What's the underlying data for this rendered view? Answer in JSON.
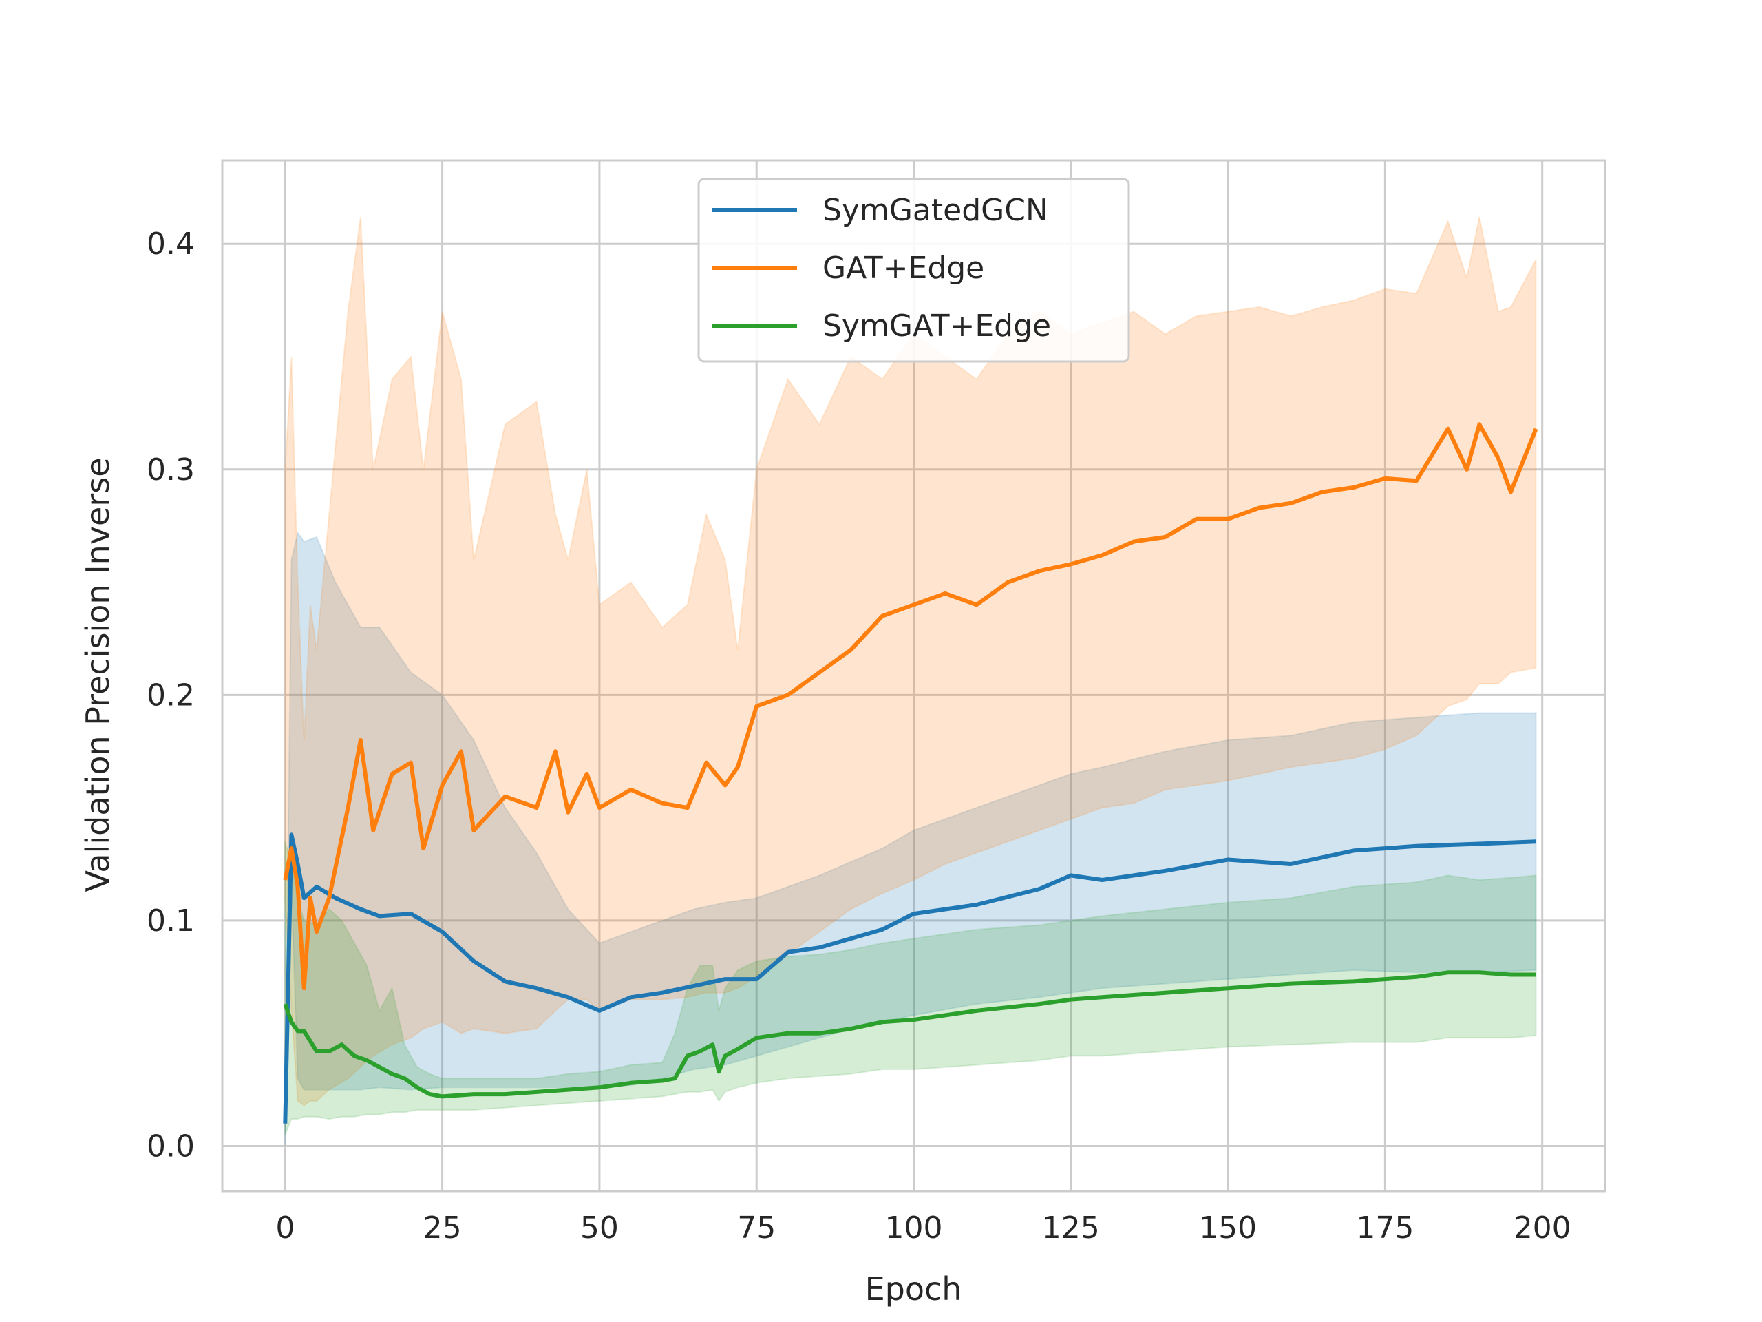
{
  "chart_data": {
    "type": "line",
    "title": "",
    "xlabel": "Epoch",
    "ylabel": "Validation Precision Inverse",
    "xlim": [
      -10,
      210
    ],
    "ylim": [
      -0.02,
      0.437
    ],
    "xticks": [
      0,
      25,
      50,
      75,
      100,
      125,
      150,
      175,
      200
    ],
    "xtick_labels": [
      "0",
      "25",
      "50",
      "75",
      "100",
      "125",
      "150",
      "175",
      "200"
    ],
    "yticks": [
      0.0,
      0.1,
      0.2,
      0.3,
      0.4
    ],
    "ytick_labels": [
      "0.0",
      "0.1",
      "0.2",
      "0.3",
      "0.4"
    ],
    "grid": true,
    "legend_position": "top-center",
    "series": [
      {
        "name": "SymGatedGCN",
        "color": "#1f77b4",
        "x": [
          0,
          1,
          2,
          3,
          5,
          8,
          12,
          15,
          20,
          25,
          30,
          35,
          40,
          45,
          50,
          55,
          60,
          65,
          70,
          75,
          80,
          85,
          90,
          95,
          100,
          110,
          120,
          125,
          130,
          140,
          150,
          160,
          170,
          180,
          190,
          199
        ],
        "mean": [
          0.01,
          0.138,
          0.125,
          0.11,
          0.115,
          0.11,
          0.105,
          0.102,
          0.103,
          0.095,
          0.082,
          0.073,
          0.07,
          0.066,
          0.06,
          0.066,
          0.068,
          0.071,
          0.074,
          0.074,
          0.086,
          0.088,
          0.092,
          0.096,
          0.103,
          0.107,
          0.114,
          0.12,
          0.118,
          0.122,
          0.127,
          0.125,
          0.131,
          0.133,
          0.134,
          0.135
        ],
        "lower": [
          0.0,
          0.115,
          0.03,
          0.025,
          0.025,
          0.025,
          0.025,
          0.026,
          0.025,
          0.026,
          0.026,
          0.026,
          0.026,
          0.026,
          0.026,
          0.027,
          0.03,
          0.034,
          0.036,
          0.04,
          0.044,
          0.048,
          0.052,
          0.055,
          0.058,
          0.063,
          0.066,
          0.068,
          0.07,
          0.072,
          0.074,
          0.076,
          0.078,
          0.077,
          0.077,
          0.078
        ],
        "upper": [
          0.018,
          0.26,
          0.272,
          0.268,
          0.27,
          0.25,
          0.23,
          0.23,
          0.21,
          0.2,
          0.18,
          0.15,
          0.13,
          0.105,
          0.09,
          0.095,
          0.1,
          0.105,
          0.108,
          0.11,
          0.115,
          0.12,
          0.126,
          0.132,
          0.14,
          0.15,
          0.16,
          0.165,
          0.168,
          0.175,
          0.18,
          0.182,
          0.188,
          0.19,
          0.192,
          0.192
        ]
      },
      {
        "name": "GAT+Edge",
        "color": "#ff7f0e",
        "x": [
          0,
          1,
          2,
          3,
          4,
          5,
          7,
          10,
          12,
          14,
          17,
          20,
          22,
          25,
          28,
          30,
          35,
          40,
          43,
          45,
          48,
          50,
          55,
          60,
          64,
          67,
          70,
          72,
          75,
          80,
          85,
          90,
          95,
          100,
          105,
          110,
          115,
          120,
          125,
          130,
          135,
          140,
          145,
          150,
          155,
          160,
          165,
          170,
          175,
          180,
          185,
          188,
          190,
          193,
          195,
          199
        ],
        "mean": [
          0.118,
          0.132,
          0.115,
          0.07,
          0.11,
          0.095,
          0.11,
          0.15,
          0.18,
          0.14,
          0.165,
          0.17,
          0.132,
          0.16,
          0.175,
          0.14,
          0.155,
          0.15,
          0.175,
          0.148,
          0.165,
          0.15,
          0.158,
          0.152,
          0.15,
          0.17,
          0.16,
          0.168,
          0.195,
          0.2,
          0.21,
          0.22,
          0.235,
          0.24,
          0.245,
          0.24,
          0.25,
          0.255,
          0.258,
          0.262,
          0.268,
          0.27,
          0.278,
          0.278,
          0.283,
          0.285,
          0.29,
          0.292,
          0.296,
          0.295,
          0.318,
          0.3,
          0.32,
          0.305,
          0.29,
          0.318
        ],
        "lower": [
          0.11,
          0.06,
          0.02,
          0.018,
          0.02,
          0.02,
          0.025,
          0.03,
          0.035,
          0.04,
          0.045,
          0.048,
          0.052,
          0.055,
          0.05,
          0.052,
          0.05,
          0.052,
          0.06,
          0.065,
          0.065,
          0.06,
          0.065,
          0.065,
          0.066,
          0.068,
          0.068,
          0.07,
          0.075,
          0.085,
          0.095,
          0.105,
          0.112,
          0.118,
          0.125,
          0.13,
          0.135,
          0.14,
          0.145,
          0.15,
          0.152,
          0.158,
          0.16,
          0.162,
          0.165,
          0.168,
          0.17,
          0.172,
          0.176,
          0.182,
          0.195,
          0.198,
          0.205,
          0.205,
          0.21,
          0.212
        ],
        "upper": [
          0.3,
          0.35,
          0.25,
          0.18,
          0.24,
          0.22,
          0.28,
          0.37,
          0.412,
          0.3,
          0.34,
          0.35,
          0.3,
          0.37,
          0.34,
          0.26,
          0.32,
          0.33,
          0.28,
          0.26,
          0.3,
          0.24,
          0.25,
          0.23,
          0.24,
          0.28,
          0.26,
          0.22,
          0.3,
          0.34,
          0.32,
          0.35,
          0.34,
          0.36,
          0.35,
          0.34,
          0.36,
          0.37,
          0.36,
          0.365,
          0.37,
          0.36,
          0.368,
          0.37,
          0.372,
          0.368,
          0.372,
          0.375,
          0.38,
          0.378,
          0.41,
          0.385,
          0.412,
          0.37,
          0.372,
          0.393
        ]
      },
      {
        "name": "SymGAT+Edge",
        "color": "#2ca02c",
        "x": [
          0,
          1,
          2,
          3,
          5,
          7,
          9,
          11,
          13,
          15,
          17,
          19,
          21,
          23,
          25,
          30,
          35,
          40,
          45,
          50,
          55,
          60,
          62,
          64,
          66,
          68,
          69,
          70,
          72,
          75,
          80,
          85,
          90,
          95,
          100,
          110,
          120,
          125,
          130,
          140,
          150,
          160,
          170,
          180,
          185,
          190,
          195,
          199
        ],
        "mean": [
          0.063,
          0.055,
          0.051,
          0.051,
          0.042,
          0.042,
          0.045,
          0.04,
          0.038,
          0.035,
          0.032,
          0.03,
          0.026,
          0.023,
          0.022,
          0.023,
          0.023,
          0.024,
          0.025,
          0.026,
          0.028,
          0.029,
          0.03,
          0.04,
          0.042,
          0.045,
          0.033,
          0.04,
          0.043,
          0.048,
          0.05,
          0.05,
          0.052,
          0.055,
          0.056,
          0.06,
          0.063,
          0.065,
          0.066,
          0.068,
          0.07,
          0.072,
          0.073,
          0.075,
          0.077,
          0.077,
          0.076,
          0.076
        ],
        "lower": [
          0.005,
          0.012,
          0.012,
          0.013,
          0.013,
          0.012,
          0.013,
          0.013,
          0.014,
          0.014,
          0.015,
          0.015,
          0.016,
          0.016,
          0.016,
          0.016,
          0.017,
          0.018,
          0.019,
          0.02,
          0.021,
          0.022,
          0.023,
          0.024,
          0.024,
          0.025,
          0.02,
          0.024,
          0.026,
          0.028,
          0.03,
          0.031,
          0.032,
          0.034,
          0.034,
          0.036,
          0.038,
          0.04,
          0.04,
          0.042,
          0.044,
          0.045,
          0.046,
          0.046,
          0.048,
          0.048,
          0.048,
          0.049
        ],
        "upper": [
          0.135,
          0.125,
          0.11,
          0.1,
          0.098,
          0.105,
          0.1,
          0.09,
          0.08,
          0.06,
          0.07,
          0.045,
          0.035,
          0.032,
          0.03,
          0.03,
          0.03,
          0.03,
          0.032,
          0.033,
          0.036,
          0.037,
          0.05,
          0.07,
          0.08,
          0.08,
          0.06,
          0.07,
          0.078,
          0.082,
          0.084,
          0.085,
          0.087,
          0.09,
          0.092,
          0.096,
          0.098,
          0.1,
          0.102,
          0.105,
          0.108,
          0.11,
          0.115,
          0.117,
          0.12,
          0.118,
          0.119,
          0.12
        ]
      }
    ]
  }
}
